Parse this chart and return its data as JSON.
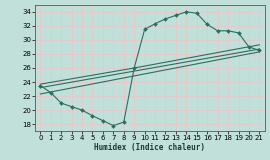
{
  "xlabel": "Humidex (Indice chaleur)",
  "background_color": "#c2e0da",
  "grid_color": "#e8c8c8",
  "line_color": "#2a6e60",
  "xlim": [
    -0.5,
    21.5
  ],
  "ylim": [
    17,
    35
  ],
  "xticks": [
    0,
    1,
    2,
    3,
    4,
    5,
    6,
    7,
    8,
    9,
    10,
    11,
    12,
    13,
    14,
    15,
    16,
    17,
    18,
    19,
    20,
    21
  ],
  "yticks": [
    18,
    20,
    22,
    24,
    26,
    28,
    30,
    32,
    34
  ],
  "curve1_x": [
    0,
    1,
    2,
    3,
    4,
    5,
    6,
    7,
    8,
    9,
    10,
    11,
    12,
    13,
    14,
    15,
    16,
    17,
    18,
    19,
    20,
    21
  ],
  "curve1_y": [
    23.5,
    22.5,
    21.0,
    20.5,
    20.0,
    19.2,
    18.5,
    17.8,
    18.3,
    26.0,
    31.5,
    32.3,
    33.0,
    33.5,
    34.0,
    33.8,
    32.2,
    31.3,
    31.3,
    31.0,
    29.0,
    28.5
  ],
  "line1_x": [
    0,
    21
  ],
  "line1_y": [
    22.3,
    28.3
  ],
  "line2_x": [
    0,
    21
  ],
  "line2_y": [
    23.2,
    28.7
  ],
  "line3_x": [
    0,
    9,
    21
  ],
  "line3_y": [
    23.7,
    26.0,
    29.3
  ]
}
